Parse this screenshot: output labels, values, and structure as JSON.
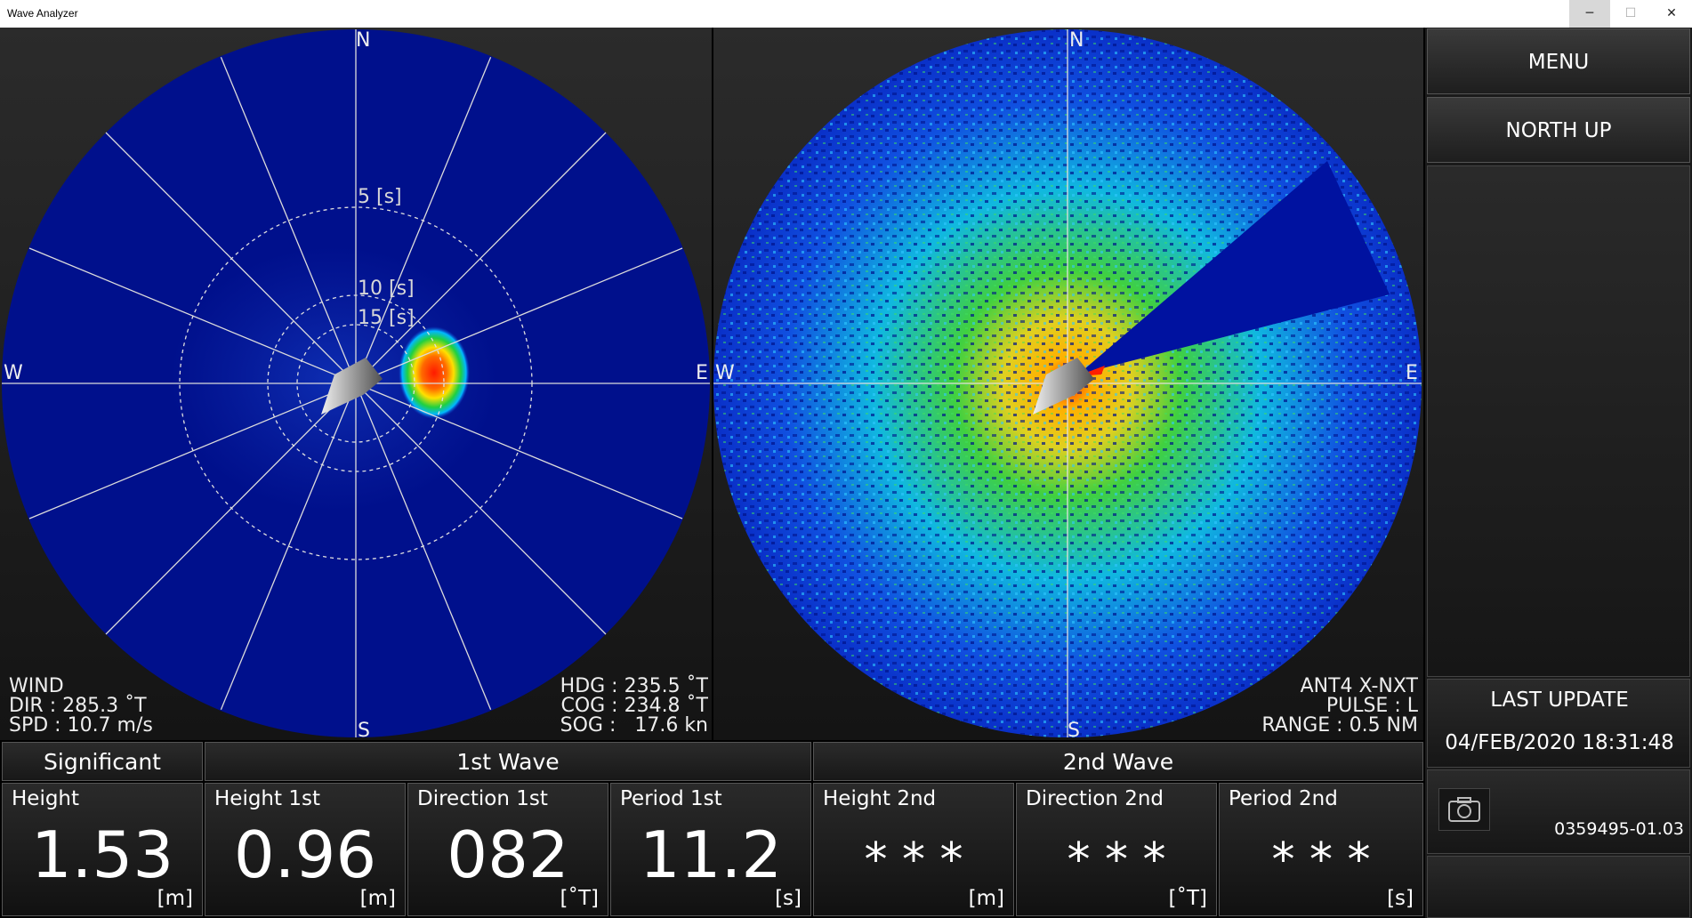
{
  "window": {
    "title": "Wave Analyzer",
    "minimize": "─",
    "maximize": "☐",
    "close": "✕"
  },
  "left_plot": {
    "compass": {
      "n": "N",
      "s": "S",
      "e": "E",
      "w": "W"
    },
    "rings": [
      "5 [s]",
      "10 [s]",
      "15 [s]"
    ],
    "wind": {
      "title": "WIND",
      "dir": "DIR : 285.3 ˚T",
      "spd": "SPD : 10.7 m/s"
    },
    "nav": {
      "hdg": "HDG : 235.5 ˚T",
      "cog": "COG : 234.8 ˚T",
      "sog": "SOG :   17.6 kn"
    }
  },
  "right_plot": {
    "compass": {
      "n": "N",
      "s": "S",
      "e": "E",
      "w": "W"
    },
    "radar": {
      "ant": "ANT4 X-NXT",
      "pulse": "PULSE : L",
      "range": "RANGE : 0.5 NM"
    }
  },
  "sidebar": {
    "menu": "MENU",
    "orientation": "NORTH UP",
    "last_update_title": "LAST UPDATE",
    "last_update_value": "04/FEB/2020 18:31:48",
    "version": "0359495-01.03",
    "camera_icon": "camera-icon"
  },
  "table": {
    "headers": {
      "significant": "Significant",
      "first": "1st Wave",
      "second": "2nd Wave"
    },
    "cells": [
      {
        "label": "Height",
        "value": "1.53",
        "unit": "[m]"
      },
      {
        "label": "Height 1st",
        "value": "0.96",
        "unit": "[m]"
      },
      {
        "label": "Direction 1st",
        "value": "082",
        "unit": "[˚T]"
      },
      {
        "label": "Period 1st",
        "value": "11.2",
        "unit": "[s]"
      },
      {
        "label": "Height 2nd",
        "value": "* * *",
        "unit": "[m]"
      },
      {
        "label": "Direction 2nd",
        "value": "* * *",
        "unit": "[˚T]"
      },
      {
        "label": "Period 2nd",
        "value": "* * *",
        "unit": "[s]"
      }
    ]
  },
  "colors": {
    "plot_bg": "#00108c",
    "hot_red": "#ff2000",
    "hot_yellow": "#ffe000",
    "green": "#20d040",
    "cyan": "#00c8ff"
  }
}
